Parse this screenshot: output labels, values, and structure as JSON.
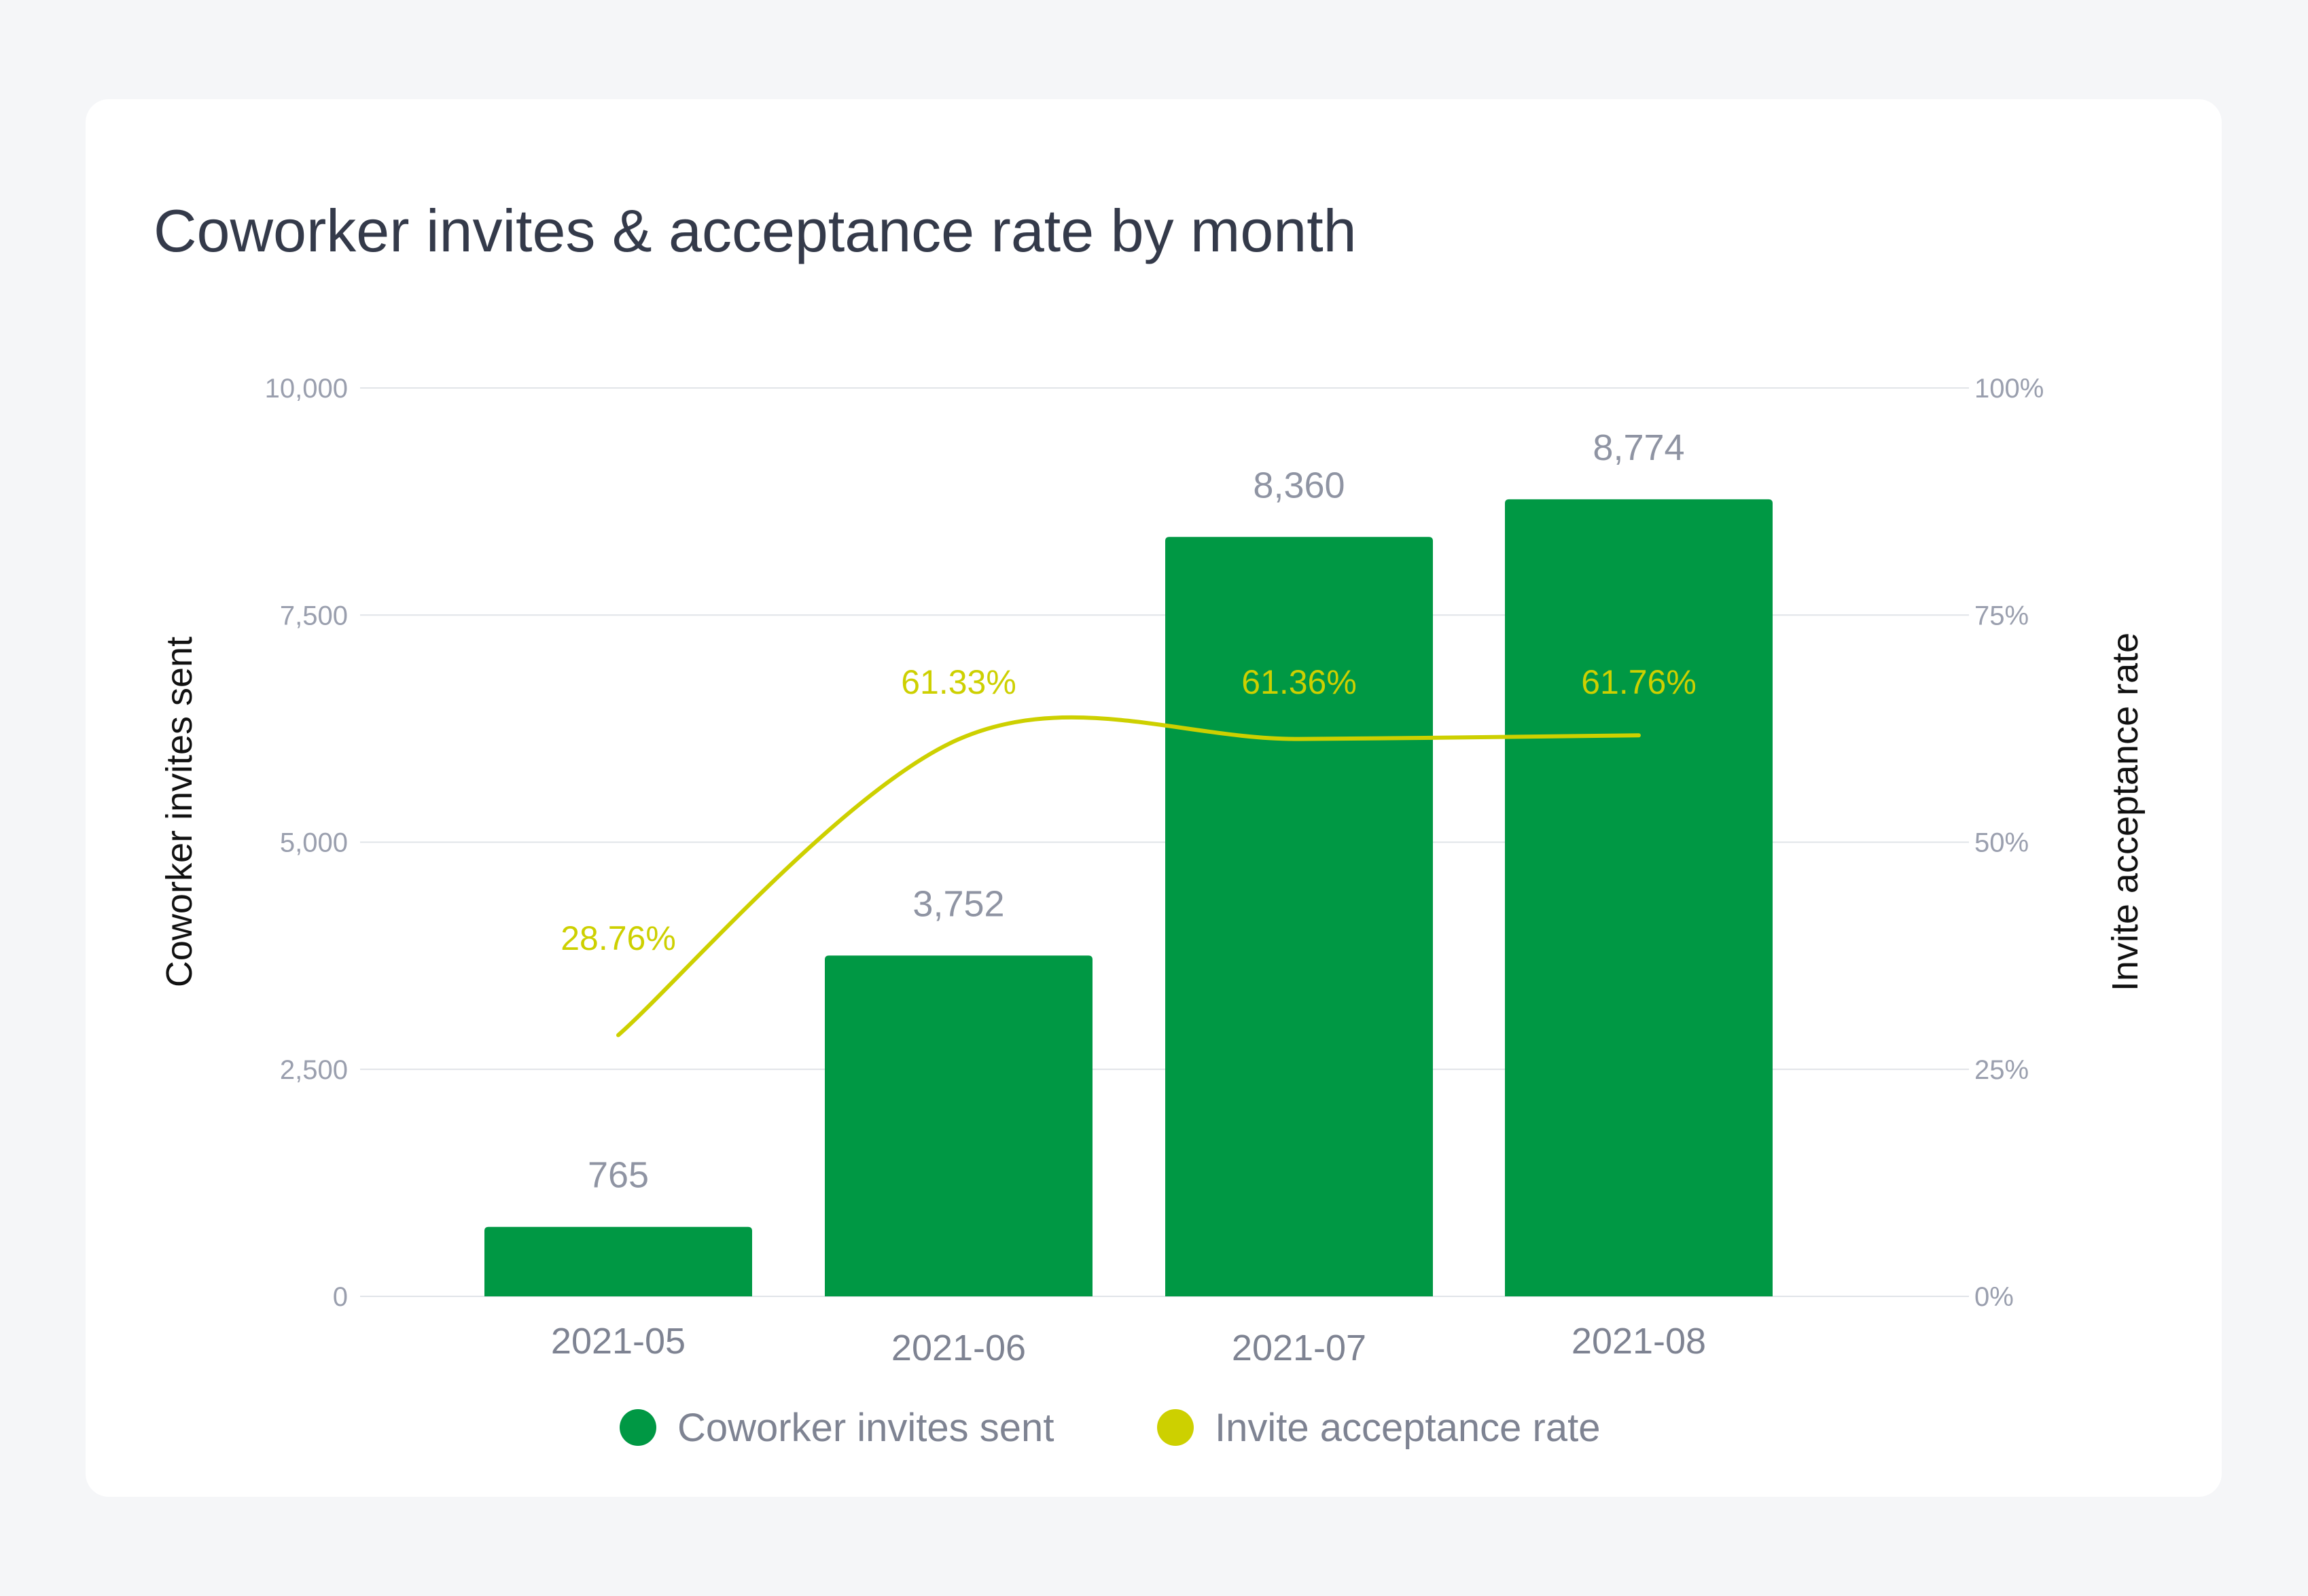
{
  "chart_data": {
    "type": "bar",
    "title": "Coworker invites & acceptance rate by month",
    "categories": [
      "2021-05",
      "2021-06",
      "2021-07",
      "2021-08"
    ],
    "series": [
      {
        "name": "Coworker invites sent",
        "type": "bar",
        "axis": "left",
        "color": "#009844",
        "values": [
          765,
          3752,
          8360,
          8774
        ],
        "labels": [
          "765",
          "3,752",
          "8,360",
          "8,774"
        ]
      },
      {
        "name": "Invite acceptance rate",
        "type": "line",
        "axis": "right",
        "color": "#cdd000",
        "values": [
          28.76,
          61.33,
          61.36,
          61.76
        ],
        "labels": [
          "28.76%",
          "61.33%",
          "61.36%",
          "61.76%"
        ]
      }
    ],
    "ylabel": "Coworker invites sent",
    "ylabel_right": "Invite acceptance rate",
    "ylim": [
      0,
      10000
    ],
    "ylim_right": [
      0,
      100
    ],
    "yticks": [
      0,
      2500,
      5000,
      7500,
      10000
    ],
    "ytick_labels": [
      "0",
      "2,500",
      "5,000",
      "7,500",
      "10,000"
    ],
    "yticks_right": [
      0,
      25,
      50,
      75,
      100
    ],
    "ytick_labels_right": [
      "0%",
      "25%",
      "50%",
      "75%",
      "100%"
    ],
    "grid": true,
    "legend_position": "bottom-center"
  }
}
